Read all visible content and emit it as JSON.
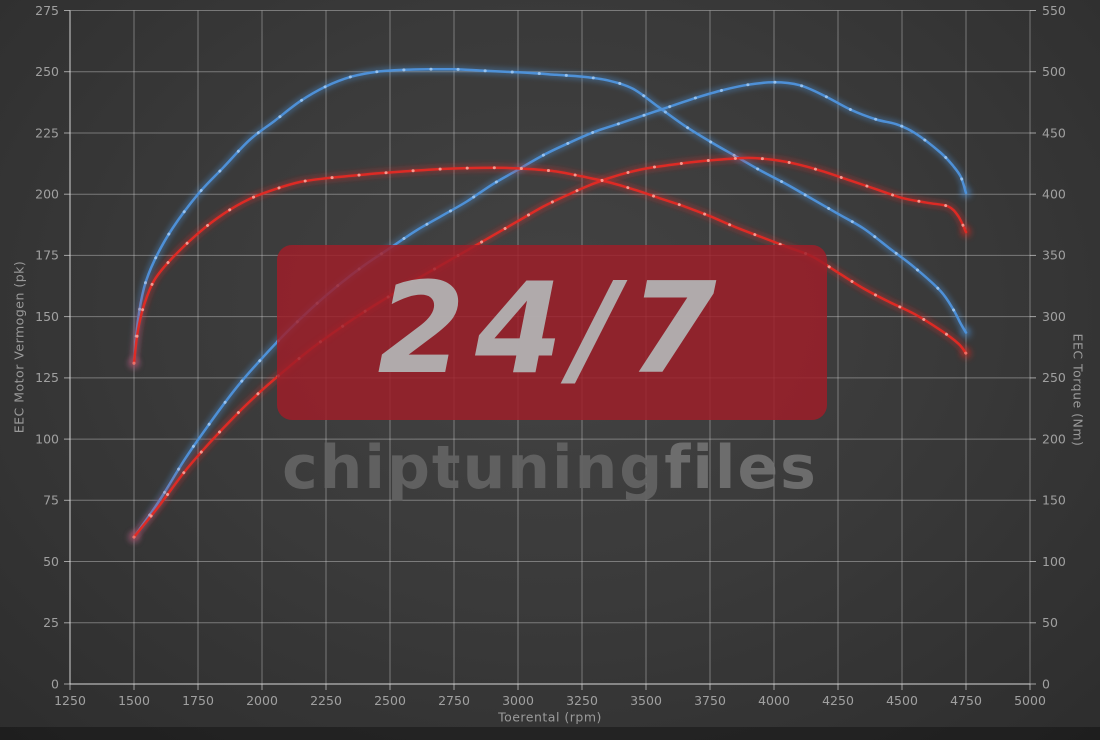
{
  "watermark": {
    "badge_text": "24/7",
    "brand_bold": "chiptuning",
    "brand_light": "files",
    "badge_color": "#9e1e29"
  },
  "chart_data": {
    "type": "line",
    "title": "",
    "xlabel": "Toerental (rpm)",
    "ylabel_left": "EEC Motor Vermogen (pk)",
    "ylabel_right": "EEC Torque (Nm)",
    "grid": true,
    "x_range": [
      1250,
      5000
    ],
    "y_left_range": [
      0,
      275
    ],
    "y_right_range": [
      0,
      550
    ],
    "x_ticks": [
      1250,
      1500,
      1750,
      2000,
      2250,
      2500,
      2750,
      3000,
      3250,
      3500,
      3750,
      4000,
      4250,
      4500,
      4750,
      5000
    ],
    "y_left_ticks": [
      0,
      25,
      50,
      75,
      100,
      125,
      150,
      175,
      200,
      225,
      250,
      275
    ],
    "y_right_ticks": [
      0,
      50,
      100,
      150,
      200,
      250,
      300,
      350,
      400,
      450,
      500,
      550
    ],
    "colors": {
      "tuned": "#4e93db",
      "original": "#e12a24",
      "grid": "rgba(215,215,215,0.42)",
      "axis": "rgba(225,225,225,0.65)"
    },
    "series": [
      {
        "name": "tuned-torque",
        "axis": "right",
        "unit": "Nm",
        "color": "#4e93db",
        "dot": "#a9cef5",
        "points": [
          [
            1500,
            262
          ],
          [
            1515,
            296
          ],
          [
            1540,
            324
          ],
          [
            1580,
            346
          ],
          [
            1650,
            372
          ],
          [
            1750,
            400
          ],
          [
            1850,
            422
          ],
          [
            1950,
            444
          ],
          [
            2050,
            460
          ],
          [
            2150,
            476
          ],
          [
            2250,
            488
          ],
          [
            2350,
            496
          ],
          [
            2450,
            500
          ],
          [
            2550,
            501.5
          ],
          [
            2650,
            502
          ],
          [
            2750,
            502
          ],
          [
            2850,
            501
          ],
          [
            2950,
            500
          ],
          [
            3050,
            499
          ],
          [
            3150,
            497.5
          ],
          [
            3250,
            496
          ],
          [
            3350,
            493
          ],
          [
            3450,
            486
          ],
          [
            3550,
            471
          ],
          [
            3650,
            456
          ],
          [
            3750,
            443
          ],
          [
            3850,
            431
          ],
          [
            3950,
            419
          ],
          [
            4050,
            408
          ],
          [
            4150,
            396
          ],
          [
            4250,
            384
          ],
          [
            4350,
            372
          ],
          [
            4450,
            356
          ],
          [
            4550,
            340
          ],
          [
            4650,
            321
          ],
          [
            4700,
            306
          ],
          [
            4730,
            294
          ],
          [
            4750,
            287
          ]
        ]
      },
      {
        "name": "tuned-power",
        "axis": "left",
        "unit": "pk",
        "color": "#4e93db",
        "dot": "#a9cef5",
        "points": [
          [
            1500,
            60
          ],
          [
            1600,
            75
          ],
          [
            1700,
            92
          ],
          [
            1800,
            107
          ],
          [
            1900,
            121
          ],
          [
            2000,
            133
          ],
          [
            2100,
            144
          ],
          [
            2200,
            154
          ],
          [
            2300,
            163
          ],
          [
            2400,
            171
          ],
          [
            2500,
            178
          ],
          [
            2600,
            185
          ],
          [
            2700,
            191
          ],
          [
            2800,
            197
          ],
          [
            2900,
            204
          ],
          [
            3000,
            210
          ],
          [
            3100,
            216
          ],
          [
            3200,
            221
          ],
          [
            3300,
            225.5
          ],
          [
            3400,
            229
          ],
          [
            3500,
            232.5
          ],
          [
            3600,
            236
          ],
          [
            3700,
            239.5
          ],
          [
            3800,
            242.5
          ],
          [
            3900,
            244.7
          ],
          [
            4000,
            245.7
          ],
          [
            4100,
            244.5
          ],
          [
            4200,
            240
          ],
          [
            4300,
            234.5
          ],
          [
            4400,
            230.5
          ],
          [
            4480,
            228.5
          ],
          [
            4550,
            225
          ],
          [
            4650,
            217
          ],
          [
            4700,
            211.5
          ],
          [
            4730,
            207
          ],
          [
            4750,
            200.5
          ]
        ]
      },
      {
        "name": "original-torque",
        "axis": "right",
        "unit": "Nm",
        "color": "#e12a24",
        "dot": "#ffb4a9",
        "points": [
          [
            1500,
            262
          ],
          [
            1515,
            288
          ],
          [
            1540,
            310
          ],
          [
            1580,
            330
          ],
          [
            1650,
            348
          ],
          [
            1750,
            368
          ],
          [
            1850,
            384
          ],
          [
            1950,
            396
          ],
          [
            2050,
            404
          ],
          [
            2150,
            410
          ],
          [
            2250,
            413
          ],
          [
            2350,
            415
          ],
          [
            2450,
            417
          ],
          [
            2550,
            418.5
          ],
          [
            2650,
            420
          ],
          [
            2750,
            421
          ],
          [
            2850,
            421.5
          ],
          [
            2950,
            421.5
          ],
          [
            3050,
            420.5
          ],
          [
            3150,
            418.5
          ],
          [
            3250,
            414.5
          ],
          [
            3350,
            410
          ],
          [
            3450,
            404
          ],
          [
            3550,
            397
          ],
          [
            3650,
            390
          ],
          [
            3750,
            382
          ],
          [
            3850,
            373
          ],
          [
            3950,
            365
          ],
          [
            4050,
            357
          ],
          [
            4150,
            349
          ],
          [
            4250,
            336
          ],
          [
            4350,
            323
          ],
          [
            4450,
            312
          ],
          [
            4550,
            302
          ],
          [
            4650,
            289
          ],
          [
            4720,
            278
          ],
          [
            4750,
            270
          ]
        ]
      },
      {
        "name": "original-power",
        "axis": "left",
        "unit": "pk",
        "color": "#e12a24",
        "dot": "#ffb4a9",
        "points": [
          [
            1500,
            60
          ],
          [
            1600,
            73
          ],
          [
            1700,
            87
          ],
          [
            1800,
            99
          ],
          [
            1900,
            110
          ],
          [
            2000,
            120
          ],
          [
            2100,
            129
          ],
          [
            2200,
            137.5
          ],
          [
            2300,
            145
          ],
          [
            2400,
            152
          ],
          [
            2500,
            158.5
          ],
          [
            2600,
            165
          ],
          [
            2700,
            171
          ],
          [
            2800,
            177
          ],
          [
            2900,
            183
          ],
          [
            3000,
            189
          ],
          [
            3100,
            195
          ],
          [
            3200,
            200
          ],
          [
            3300,
            204.5
          ],
          [
            3400,
            208
          ],
          [
            3500,
            210.5
          ],
          [
            3600,
            212
          ],
          [
            3700,
            213.3
          ],
          [
            3800,
            214.2
          ],
          [
            3900,
            214.8
          ],
          [
            4000,
            214
          ],
          [
            4100,
            212
          ],
          [
            4200,
            209
          ],
          [
            4300,
            205.5
          ],
          [
            4400,
            202
          ],
          [
            4500,
            198.5
          ],
          [
            4600,
            196.5
          ],
          [
            4680,
            195
          ],
          [
            4720,
            191
          ],
          [
            4750,
            184.5
          ]
        ]
      }
    ]
  }
}
